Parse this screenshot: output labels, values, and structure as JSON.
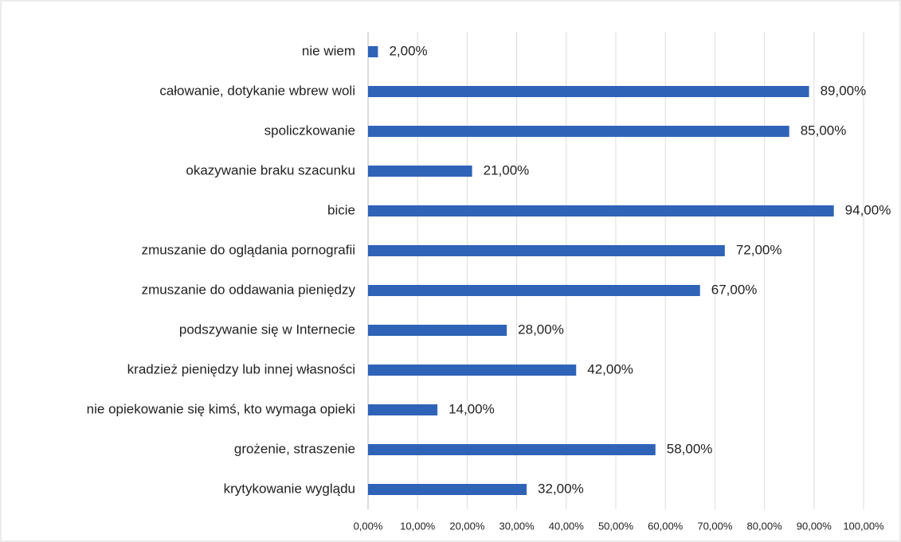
{
  "chart_data": {
    "type": "bar",
    "orientation": "horizontal",
    "categories": [
      "nie wiem",
      "całowanie, dotykanie wbrew woli",
      "spoliczkowanie",
      "okazywanie braku szacunku",
      "bicie",
      "zmuszanie do oglądania pornografii",
      "zmuszanie do oddawania pieniędzy",
      "podszywanie się w Internecie",
      "kradzież pieniędzy lub innej własności",
      "nie opiekowanie się kimś, kto wymaga opieki",
      "grożenie, straszenie",
      "krytykowanie wyglądu"
    ],
    "values": [
      2,
      89,
      85,
      21,
      94,
      72,
      67,
      28,
      42,
      14,
      58,
      32
    ],
    "value_labels": [
      "2,00%",
      "89,00%",
      "85,00%",
      "21,00%",
      "94,00%",
      "72,00%",
      "67,00%",
      "28,00%",
      "42,00%",
      "14,00%",
      "58,00%",
      "32,00%"
    ],
    "color": "#2f63b8",
    "xlim": [
      0,
      100
    ],
    "xticks": [
      {
        "value": 0,
        "label": "0,00%"
      },
      {
        "value": 10,
        "label": "10,00%"
      },
      {
        "value": 20,
        "label": "20,00%"
      },
      {
        "value": 30,
        "label": "30,00%"
      },
      {
        "value": 40,
        "label": "40,00%"
      },
      {
        "value": 50,
        "label": "50,00%"
      },
      {
        "value": 60,
        "label": "60,00%"
      },
      {
        "value": 70,
        "label": "70,00%"
      },
      {
        "value": 80,
        "label": "80,00%"
      },
      {
        "value": 90,
        "label": "90,00%"
      },
      {
        "value": 100,
        "label": "100,00%"
      }
    ],
    "grid": true
  }
}
